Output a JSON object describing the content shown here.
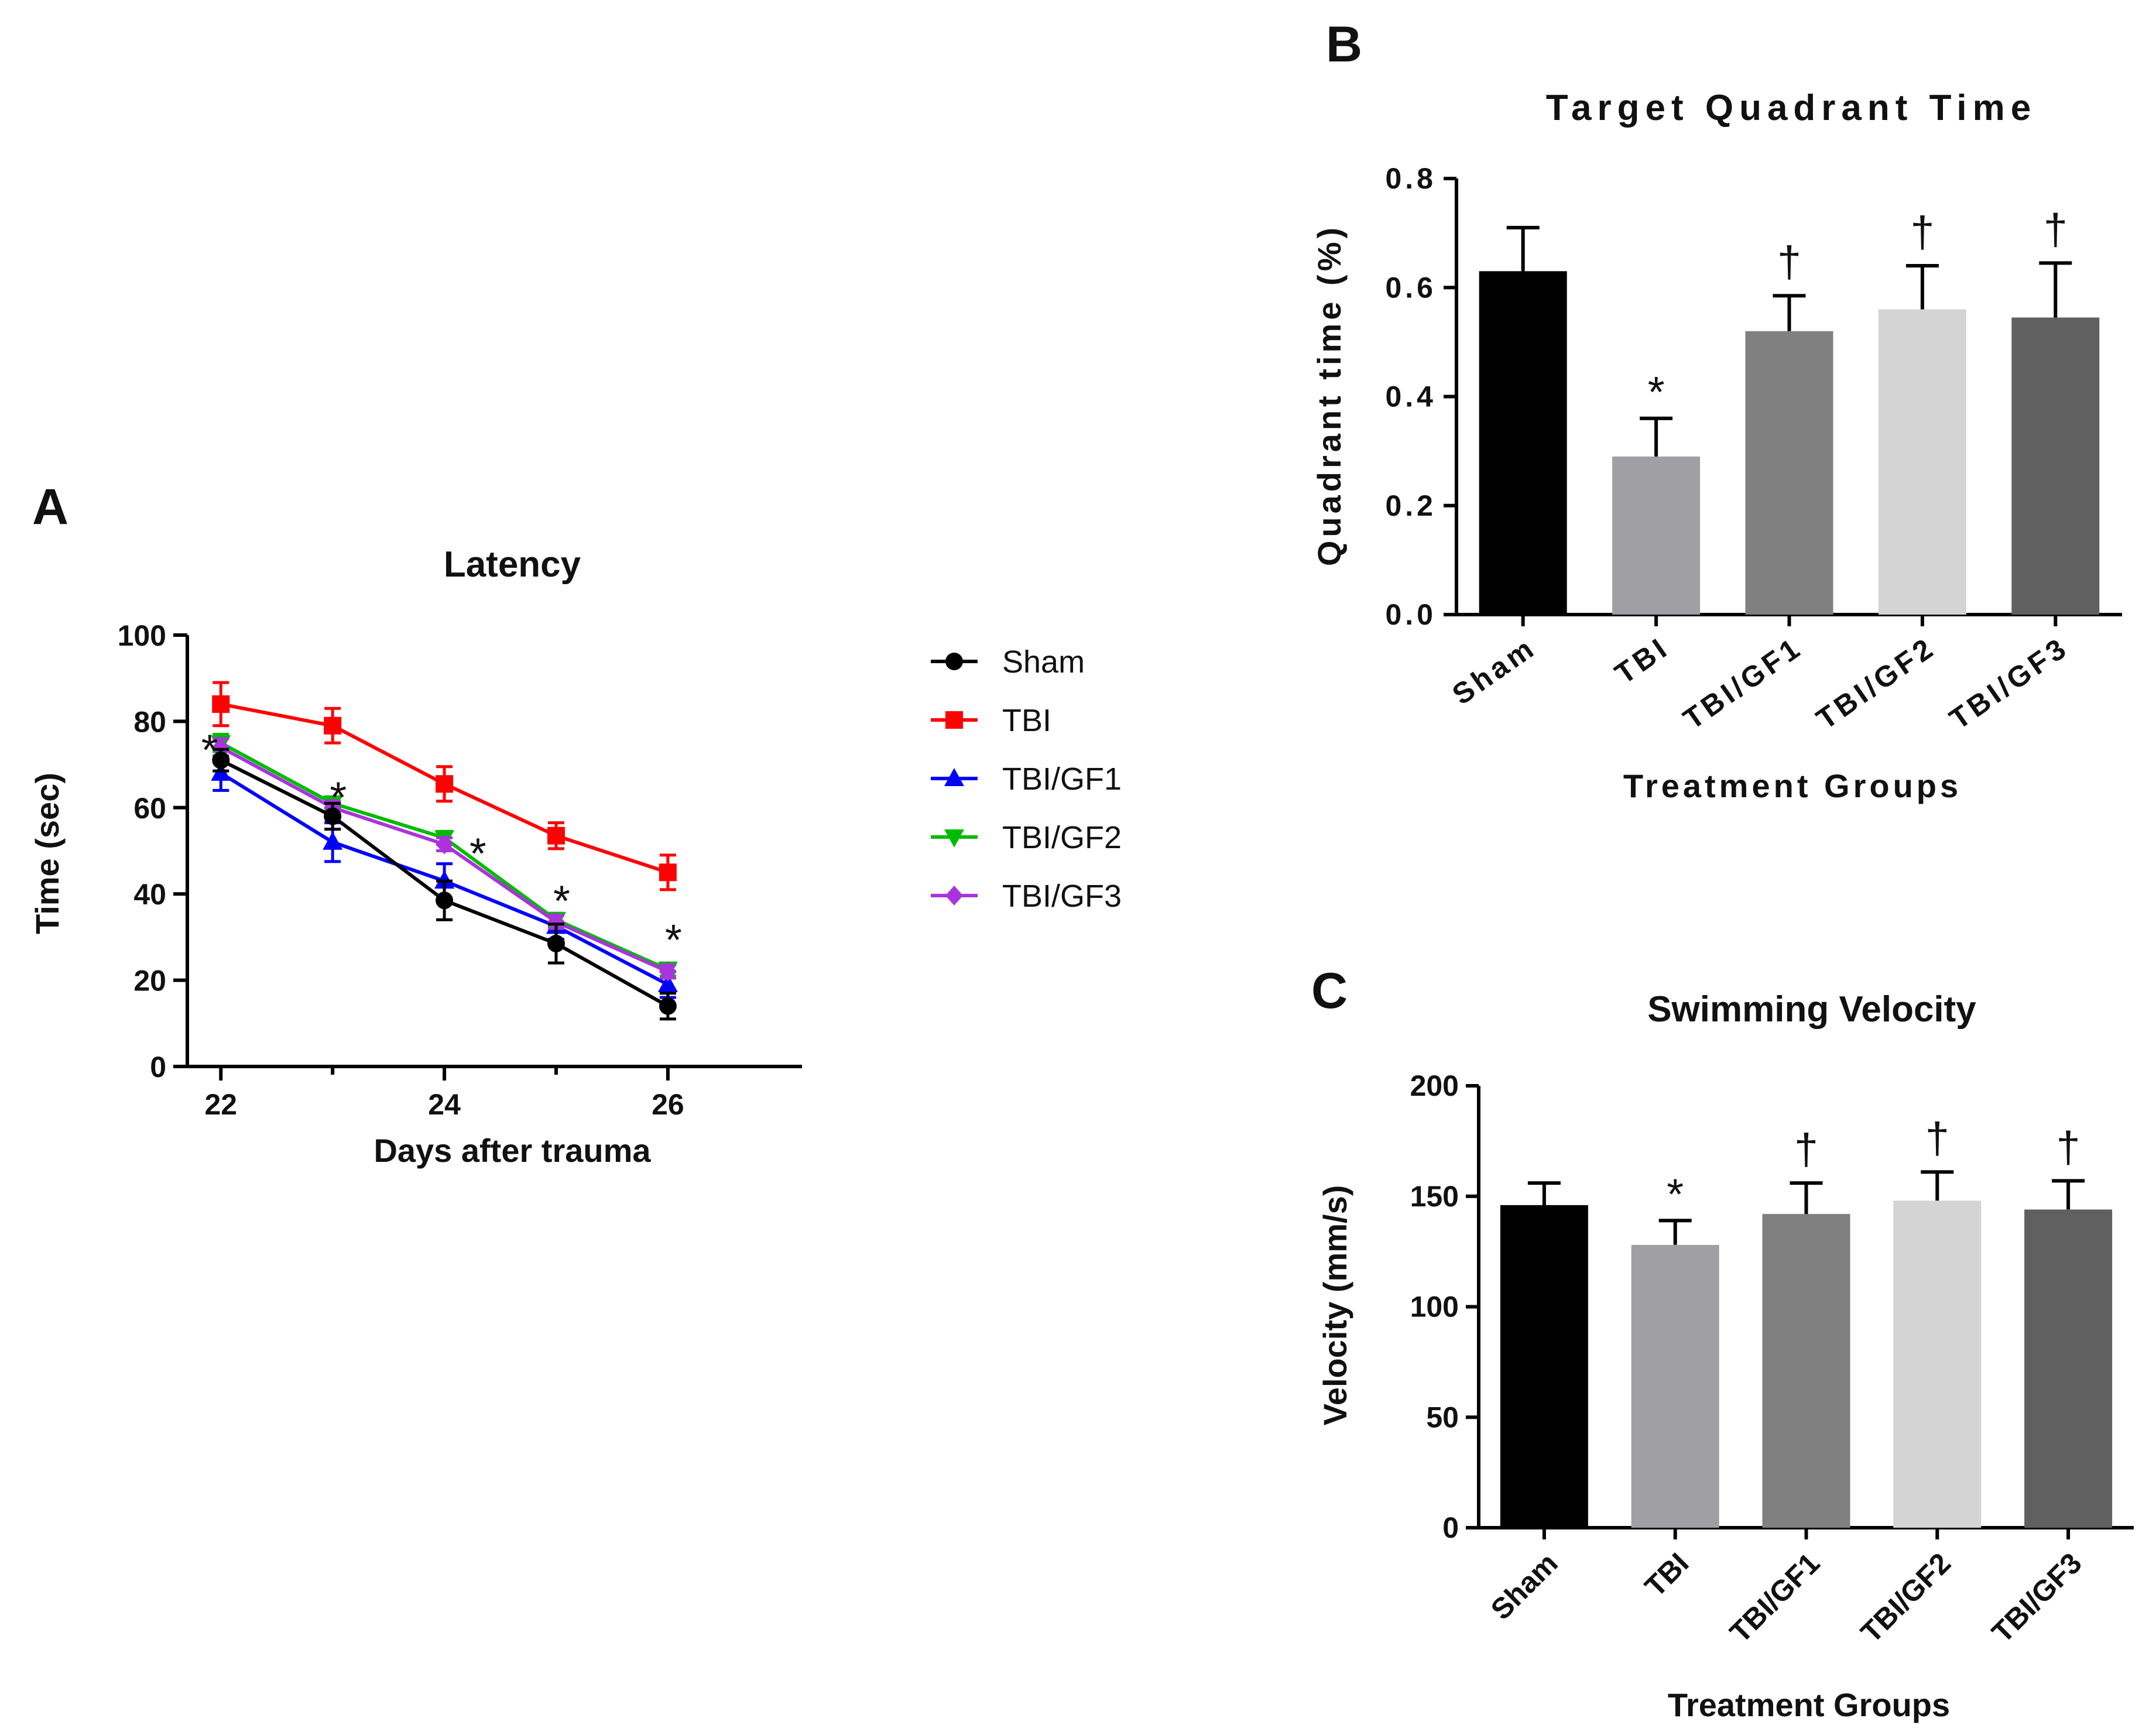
{
  "chart_data": [
    {
      "panel": "A",
      "type": "line",
      "title": "Latency",
      "xlabel": "Days after trauma",
      "ylabel": "Time (sec)",
      "x": [
        22,
        23,
        24,
        25,
        26
      ],
      "xlim": [
        21.7,
        27.2
      ],
      "xticks": [
        "22",
        "24",
        "26"
      ],
      "ylim": [
        0,
        100
      ],
      "yticks": [
        "0",
        "20",
        "40",
        "60",
        "80",
        "100"
      ],
      "legend_position": "right",
      "series": [
        {
          "name": "Sham",
          "color": "#000000",
          "marker": "circle",
          "values": [
            71,
            58,
            38.5,
            28.5,
            14
          ],
          "errors": [
            2.5,
            3,
            4.5,
            4.5,
            3
          ]
        },
        {
          "name": "TBI",
          "color": "#ff0000",
          "marker": "square",
          "values": [
            84,
            79,
            65.5,
            53.5,
            45
          ],
          "errors": [
            5,
            4,
            4,
            3,
            4
          ]
        },
        {
          "name": "TBI/GF1",
          "color": "#0000ff",
          "marker": "triangle-up",
          "values": [
            68,
            52,
            43,
            32.5,
            19
          ],
          "errors": [
            4,
            4.5,
            4,
            3,
            3
          ]
        },
        {
          "name": "TBI/GF2",
          "color": "#00bb00",
          "marker": "triangle-down",
          "values": [
            75,
            61,
            53,
            34,
            22.5
          ],
          "errors": [
            2,
            1.5,
            1.5,
            1.5,
            1.5
          ]
        },
        {
          "name": "TBI/GF3",
          "color": "#aa33dd",
          "marker": "diamond",
          "values": [
            74,
            60,
            51.5,
            33.5,
            22
          ],
          "errors": [
            2,
            1.5,
            1.5,
            1.5,
            1.5
          ]
        }
      ],
      "annotations": [
        {
          "text": "*",
          "x": 21.9,
          "y": 74
        },
        {
          "text": "*",
          "x": 23.05,
          "y": 63
        },
        {
          "text": "*",
          "x": 24.3,
          "y": 50
        },
        {
          "text": "*",
          "x": 25.05,
          "y": 39
        },
        {
          "text": "*",
          "x": 26.05,
          "y": 30
        }
      ]
    },
    {
      "panel": "B",
      "type": "bar",
      "title": "Target Quadrant Time",
      "xlabel": "Treatment Groups",
      "ylabel": "Quadrant time (%)",
      "categories": [
        "Sham",
        "TBI",
        "TBI/GF1",
        "TBI/GF2",
        "TBI/GF3"
      ],
      "values": [
        0.63,
        0.29,
        0.52,
        0.56,
        0.545
      ],
      "errors": [
        0.08,
        0.07,
        0.065,
        0.08,
        0.1
      ],
      "colors": [
        "#000000",
        "#a0a0a4",
        "#808080",
        "#d4d4d4",
        "#606060"
      ],
      "ylim": [
        0,
        0.8
      ],
      "yticks": [
        "0.0",
        "0.2",
        "0.4",
        "0.6",
        "0.8"
      ],
      "significance": [
        "",
        "*",
        "†",
        "†",
        "†"
      ]
    },
    {
      "panel": "C",
      "type": "bar",
      "title": "Swimming Velocity",
      "xlabel": "Treatment Groups",
      "ylabel": "Velocity (mm/s)",
      "categories": [
        "Sham",
        "TBI",
        "TBI/GF1",
        "TBI/GF2",
        "TBI/GF3"
      ],
      "values": [
        146,
        128,
        142,
        148,
        144
      ],
      "errors": [
        10,
        11,
        14,
        13,
        13
      ],
      "colors": [
        "#000000",
        "#a0a0a4",
        "#808080",
        "#d4d4d4",
        "#606060"
      ],
      "ylim": [
        0,
        200
      ],
      "yticks": [
        "0",
        "50",
        "100",
        "150",
        "200"
      ],
      "significance": [
        "",
        "*",
        "†",
        "†",
        "†"
      ]
    }
  ]
}
